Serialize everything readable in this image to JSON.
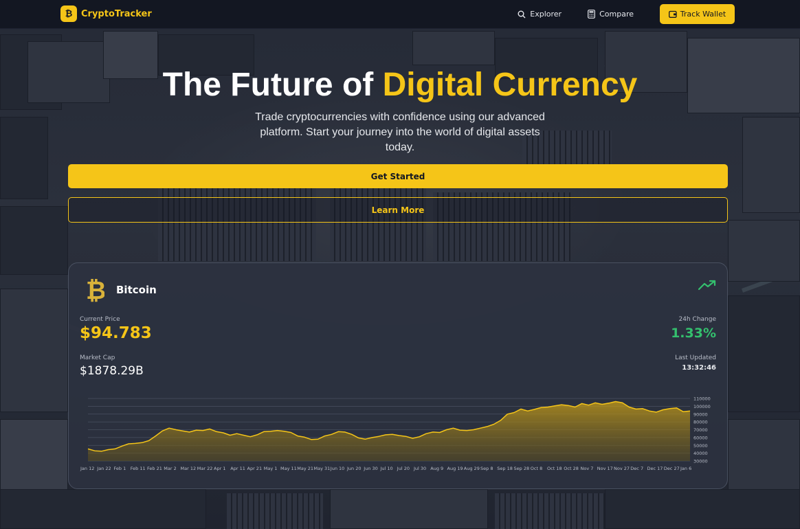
{
  "navbar": {
    "brand_name": "CryptoTracker",
    "brand_logo_icon": "bitcoin-logo-icon",
    "links": [
      {
        "label": "Explorer",
        "icon": "search-icon"
      },
      {
        "label": "Compare",
        "icon": "calculator-icon"
      }
    ],
    "track_wallet_label": "Track Wallet"
  },
  "hero": {
    "title_part1": "The Future of ",
    "title_accent": "Digital Currency",
    "subtitle_lines": [
      "Trade cryptocurrencies with confidence using our advanced",
      "platform. Start your journey into the world of digital assets",
      "today."
    ],
    "primary_button": "Get Started",
    "secondary_button": "Learn More"
  },
  "card": {
    "coin_name": "Bitcoin",
    "current_price_label": "Current Price",
    "current_price": "$94.783",
    "change_label": "24h Change",
    "change_value": "1.33%",
    "market_cap_label": "Market Cap",
    "market_cap": "$1878.29B",
    "last_updated_label": "Last Updated",
    "last_updated": "13:32:46"
  },
  "colors": {
    "accent": "#f5c518",
    "positive": "#34c06e",
    "nav_bg": "#131722",
    "card_bg": "#2c323f"
  },
  "chart_data": {
    "type": "area",
    "ylim": [
      30000,
      110000
    ],
    "y_ticks": [
      110000,
      100000,
      90000,
      80000,
      70000,
      60000,
      50000,
      40000,
      30000
    ],
    "x_tick_labels": [
      "Jan 12",
      "Jan 22",
      "Feb 1",
      "Feb 11",
      "Feb 21",
      "Mar 2",
      "Mar 12",
      "Mar 22",
      "Apr 1",
      "Apr 11",
      "Apr 21",
      "May 1",
      "May 11",
      "May 21",
      "May 31",
      "Jun 10",
      "Jun 20",
      "Jun 30",
      "Jul 10",
      "Jul 20",
      "Jul 30",
      "Aug 9",
      "Aug 19",
      "Aug 29",
      "Sep 8",
      "Sep 18",
      "Sep 28",
      "Oct 8",
      "Oct 18",
      "Oct 28",
      "Nov 7",
      "Nov 17",
      "Nov 27",
      "Dec 7",
      "Dec 17",
      "Dec 27",
      "Jan 6"
    ],
    "values": [
      45500,
      43000,
      42500,
      44500,
      45500,
      49000,
      52000,
      52500,
      53500,
      56000,
      62000,
      68500,
      72000,
      70000,
      68500,
      67000,
      69500,
      69000,
      71000,
      67500,
      66000,
      63000,
      65000,
      63000,
      61000,
      63500,
      67500,
      68000,
      69000,
      68000,
      66500,
      62000,
      60500,
      57500,
      58000,
      62000,
      64000,
      67500,
      67000,
      64000,
      59500,
      58000,
      60000,
      61500,
      63500,
      64000,
      62500,
      61500,
      59000,
      61000,
      65000,
      67000,
      66500,
      70000,
      72000,
      69500,
      69000,
      70000,
      72000,
      74000,
      77000,
      82000,
      90000,
      92000,
      96500,
      94000,
      96000,
      98500,
      99000,
      100500,
      102000,
      101000,
      99000,
      103500,
      101500,
      104500,
      102500,
      104000,
      106000,
      104500,
      99000,
      96500,
      97000,
      94000,
      92500,
      95500,
      97000,
      98000,
      93000,
      94000
    ]
  }
}
